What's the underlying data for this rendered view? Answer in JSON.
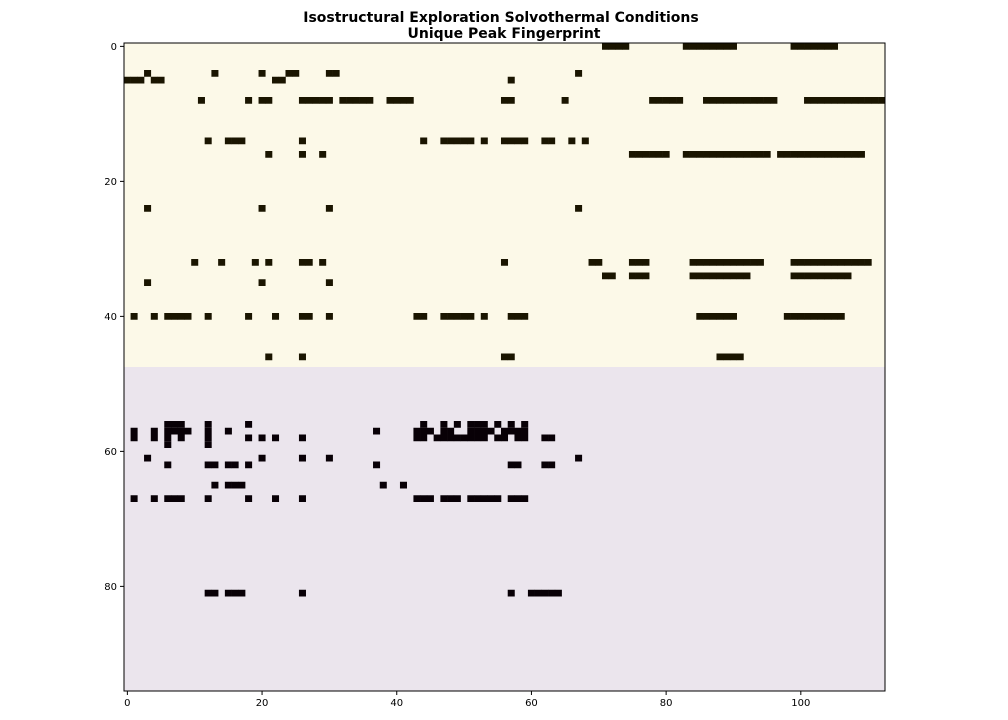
{
  "chart_data": {
    "type": "heatmap",
    "title": "Isostructural Exploration Solvothermal Conditions",
    "subtitle": "Unique Peak Fingerprint",
    "xlabel": "",
    "ylabel": "",
    "xlim": [
      0,
      112
    ],
    "ylim": [
      0,
      96
    ],
    "xticks": [
      "0",
      "20",
      "40",
      "60",
      "80",
      "100"
    ],
    "yticks": [
      "0",
      "20",
      "40",
      "60",
      "80"
    ],
    "grid": false,
    "regions": [
      {
        "rows": [
          0,
          47
        ],
        "background": "#fcf9e8",
        "mark_color": "#1a1500"
      },
      {
        "rows": [
          48,
          95
        ],
        "background": "#ebe5ed",
        "mark_color": "#080006"
      }
    ],
    "marks": [
      {
        "y": 0,
        "x": [
          71,
          72,
          73,
          74,
          83,
          84,
          85,
          86,
          87,
          88,
          89,
          90,
          99,
          100,
          101,
          102,
          103,
          104,
          105
        ]
      },
      {
        "y": 4,
        "x": [
          3,
          13,
          20,
          24,
          25,
          30,
          31,
          67
        ]
      },
      {
        "y": 5,
        "x": [
          0,
          1,
          2,
          4,
          5,
          22,
          23,
          57
        ]
      },
      {
        "y": 8,
        "x": [
          11,
          18,
          20,
          21,
          26,
          27,
          28,
          29,
          30,
          32,
          33,
          34,
          35,
          36,
          39,
          40,
          41,
          42,
          56,
          57,
          65,
          78,
          79,
          80,
          81,
          82,
          86,
          87,
          88,
          89,
          90,
          91,
          92,
          93,
          94,
          95,
          96,
          101,
          102,
          103,
          104,
          105,
          106,
          107,
          108,
          109,
          110,
          111,
          112
        ]
      },
      {
        "y": 14,
        "x": [
          12,
          15,
          16,
          17,
          26,
          44,
          47,
          48,
          49,
          50,
          51,
          53,
          56,
          57,
          58,
          59,
          62,
          63,
          66,
          68
        ]
      },
      {
        "y": 16,
        "x": [
          21,
          26,
          29,
          75,
          76,
          77,
          78,
          79,
          80,
          83,
          84,
          85,
          86,
          87,
          88,
          89,
          90,
          91,
          92,
          93,
          94,
          95,
          97,
          98,
          99,
          100,
          101,
          102,
          103,
          104,
          105,
          106,
          107,
          108,
          109
        ]
      },
      {
        "y": 24,
        "x": [
          3,
          20,
          30,
          67
        ]
      },
      {
        "y": 32,
        "x": [
          10,
          14,
          19,
          21,
          26,
          27,
          29,
          56,
          69,
          70,
          75,
          76,
          77,
          84,
          85,
          86,
          87,
          88,
          89,
          90,
          91,
          92,
          93,
          94,
          99,
          100,
          101,
          102,
          103,
          104,
          105,
          106,
          107,
          108,
          109,
          110
        ]
      },
      {
        "y": 34,
        "x": [
          71,
          72,
          75,
          76,
          77,
          84,
          85,
          86,
          87,
          88,
          89,
          90,
          91,
          92,
          99,
          100,
          101,
          102,
          103,
          104,
          105,
          106,
          107
        ]
      },
      {
        "y": 35,
        "x": [
          3,
          20,
          30
        ]
      },
      {
        "y": 40,
        "x": [
          1,
          4,
          6,
          7,
          8,
          9,
          12,
          18,
          22,
          26,
          27,
          30,
          43,
          44,
          47,
          48,
          49,
          50,
          51,
          53,
          57,
          58,
          59,
          85,
          86,
          87,
          88,
          89,
          90,
          98,
          99,
          100,
          101,
          102,
          103,
          104,
          105,
          106
        ]
      },
      {
        "y": 46,
        "x": [
          21,
          26,
          56,
          57,
          88,
          89,
          90,
          91
        ]
      },
      {
        "y": 56,
        "x": [
          6,
          7,
          8,
          12,
          18,
          44,
          47,
          49,
          51,
          52,
          53,
          55,
          57,
          59
        ]
      },
      {
        "y": 57,
        "x": [
          1,
          4,
          6,
          7,
          8,
          9,
          12,
          15,
          43,
          44,
          45,
          47,
          48,
          51,
          52,
          53,
          54,
          56,
          57,
          58,
          59,
          37
        ]
      },
      {
        "y": 58,
        "x": [
          1,
          4,
          6,
          8,
          12,
          18,
          20,
          22,
          26,
          43,
          44,
          46,
          47,
          48,
          49,
          50,
          51,
          52,
          53,
          55,
          56,
          58,
          59,
          62,
          63
        ]
      },
      {
        "y": 59,
        "x": [
          6,
          12
        ]
      },
      {
        "y": 61,
        "x": [
          3,
          20,
          26,
          30,
          67
        ]
      },
      {
        "y": 62,
        "x": [
          6,
          12,
          13,
          15,
          16,
          18,
          37,
          57,
          58,
          62,
          63
        ]
      },
      {
        "y": 65,
        "x": [
          13,
          15,
          16,
          17,
          38,
          41
        ]
      },
      {
        "y": 67,
        "x": [
          1,
          4,
          6,
          7,
          8,
          12,
          18,
          22,
          26,
          43,
          44,
          45,
          47,
          48,
          49,
          51,
          52,
          53,
          54,
          55,
          57,
          58,
          59
        ]
      },
      {
        "y": 81,
        "x": [
          12,
          13,
          15,
          16,
          17,
          26,
          57,
          60,
          61,
          62,
          63,
          64
        ]
      }
    ]
  }
}
